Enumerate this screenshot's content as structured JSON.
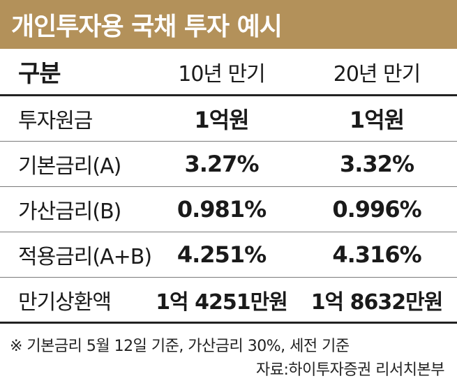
{
  "title": "개인투자용 국채 투자 예시",
  "table": {
    "headers": [
      "구분",
      "10년 만기",
      "20년 만기"
    ],
    "rows": [
      {
        "label": "투자원금",
        "y10": "1억원",
        "y20": "1억원"
      },
      {
        "label": "기본금리(A)",
        "y10": "3.27%",
        "y20": "3.32%"
      },
      {
        "label": "가산금리(B)",
        "y10": "0.981%",
        "y20": "0.996%"
      },
      {
        "label": "적용금리(A+B)",
        "y10": "4.251%",
        "y20": "4.316%"
      },
      {
        "label": "만기상환액",
        "y10": "1억 4251만원",
        "y20": "1억 8632만원"
      }
    ]
  },
  "footnote": "※ 기본금리 5월 12일 기준, 가산금리 30%, 세전 기준",
  "source": "자료:하이투자증권 리서치본부",
  "colors": {
    "title_background": "#b3915a",
    "title_text": "#ffffff",
    "text": "#1a1a1a"
  }
}
